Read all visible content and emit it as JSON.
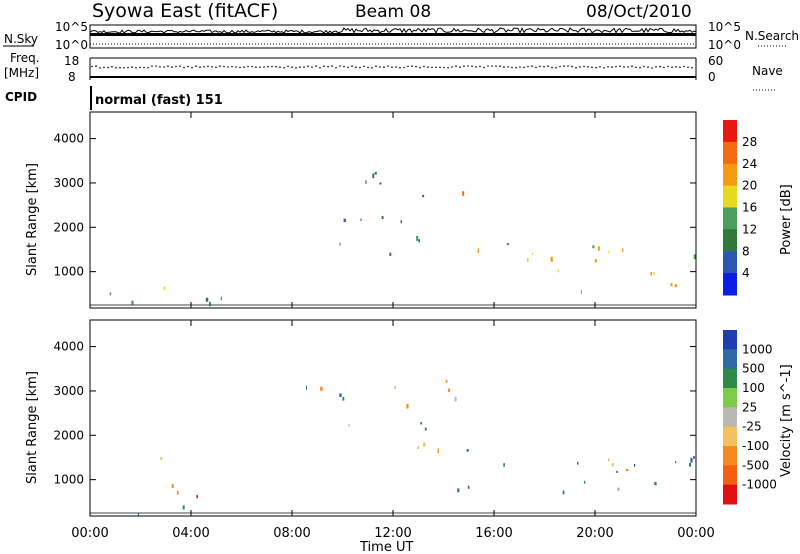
{
  "header": {
    "title": "Syowa East (fitACF)",
    "beam": "Beam 08",
    "date": "08/Oct/2010"
  },
  "nsky_panel": {
    "left_label": "N.Sky",
    "right_label": "N.Search",
    "left_ticks": [
      "10^5",
      "10^0"
    ],
    "right_ticks": [
      "10^5",
      "10^0"
    ]
  },
  "freq_panel": {
    "left_label_line1": "Freq.",
    "left_label_line2": "[MHz]",
    "left_ticks": [
      "18",
      "8"
    ],
    "right_label": "Nave",
    "right_ticks": [
      "60",
      "0"
    ]
  },
  "cpid_panel": {
    "label": "CPID",
    "text": "normal (fast) 151"
  },
  "x_axis": {
    "label": "Time UT",
    "ticks": [
      "00:00",
      "04:00",
      "08:00",
      "12:00",
      "16:00",
      "20:00",
      "00:00"
    ]
  },
  "power_panel": {
    "ylabel": "Slant Range [km]",
    "yticks": [
      "4000",
      "3000",
      "2000",
      "1000"
    ],
    "colorbar_label": "Power [dB]",
    "colorbar_ticks": [
      "28",
      "24",
      "20",
      "16",
      "12",
      "8",
      "4"
    ],
    "colors": [
      "#0a1ee6",
      "#2a58b0",
      "#2f7a3a",
      "#4aa05a",
      "#e8d820",
      "#f59a10",
      "#f56a10",
      "#e81810"
    ]
  },
  "velocity_panel": {
    "ylabel": "Slant Range [km]",
    "yticks": [
      "4000",
      "3000",
      "2000",
      "1000"
    ],
    "colorbar_label": "Velocity [m s^-1]",
    "colorbar_ticks": [
      "1000",
      "500",
      "100",
      "25",
      "-25",
      "-100",
      "-500",
      "-1000"
    ],
    "colors": [
      "#1e3cb4",
      "#2f6aa8",
      "#2f8a4a",
      "#7ccc4a",
      "#b8b8b0",
      "#f5c060",
      "#f58a20",
      "#f56010",
      "#e01010"
    ]
  },
  "chart_data": [
    {
      "type": "heatmap",
      "title": "Power [dB]",
      "xlabel": "Time UT",
      "ylabel": "Slant Range [km]",
      "xlim": [
        0,
        24
      ],
      "ylim": [
        180,
        4600
      ],
      "colorbar_range": [
        0,
        32
      ],
      "regions": [
        {
          "t0": 0.0,
          "t1": 7.0,
          "r0": 200,
          "r1": 900,
          "value": 10
        },
        {
          "t0": 2.0,
          "t1": 4.5,
          "r0": 250,
          "r1": 700,
          "value": 14
        },
        {
          "t0": 8.5,
          "t1": 14.0,
          "r0": 1400,
          "r1": 3300,
          "value": 9
        },
        {
          "t0": 10.5,
          "t1": 13.5,
          "r0": 1600,
          "r1": 1900,
          "value": 18
        },
        {
          "t0": 14.0,
          "t1": 15.5,
          "r0": 2700,
          "r1": 3300,
          "value": 24
        },
        {
          "t0": 14.5,
          "t1": 18.0,
          "r0": 1300,
          "r1": 1800,
          "value": 17
        },
        {
          "t0": 15.5,
          "t1": 24.0,
          "r0": 700,
          "r1": 1600,
          "value": 20
        },
        {
          "t0": 19.0,
          "t1": 23.5,
          "r0": 500,
          "r1": 1200,
          "value": 26
        },
        {
          "t0": 18.5,
          "t1": 24.0,
          "r0": 1300,
          "r1": 1700,
          "value": 15
        }
      ]
    },
    {
      "type": "heatmap",
      "title": "Velocity [m s^-1]",
      "xlabel": "Time UT",
      "ylabel": "Slant Range [km]",
      "xlim": [
        0,
        24
      ],
      "ylim": [
        180,
        4600
      ],
      "colorbar_range": [
        -1000,
        1000
      ],
      "regions": [
        {
          "t0": 0.0,
          "t1": 7.0,
          "r0": 200,
          "r1": 500,
          "value": 60
        },
        {
          "t0": 2.0,
          "t1": 4.5,
          "r0": 300,
          "r1": 1600,
          "value": -300
        },
        {
          "t0": 8.0,
          "t1": 14.5,
          "r0": 1300,
          "r1": 3300,
          "value": 0
        },
        {
          "t0": 14.0,
          "t1": 15.5,
          "r0": 2700,
          "r1": 3300,
          "value": -300
        },
        {
          "t0": 14.5,
          "t1": 24.0,
          "r0": 700,
          "r1": 1700,
          "value": 150
        },
        {
          "t0": 18.0,
          "t1": 24.0,
          "r0": 900,
          "r1": 1700,
          "value": 600
        },
        {
          "t0": 17.0,
          "t1": 22.0,
          "r0": 1200,
          "r1": 1600,
          "value": -200
        }
      ]
    }
  ]
}
